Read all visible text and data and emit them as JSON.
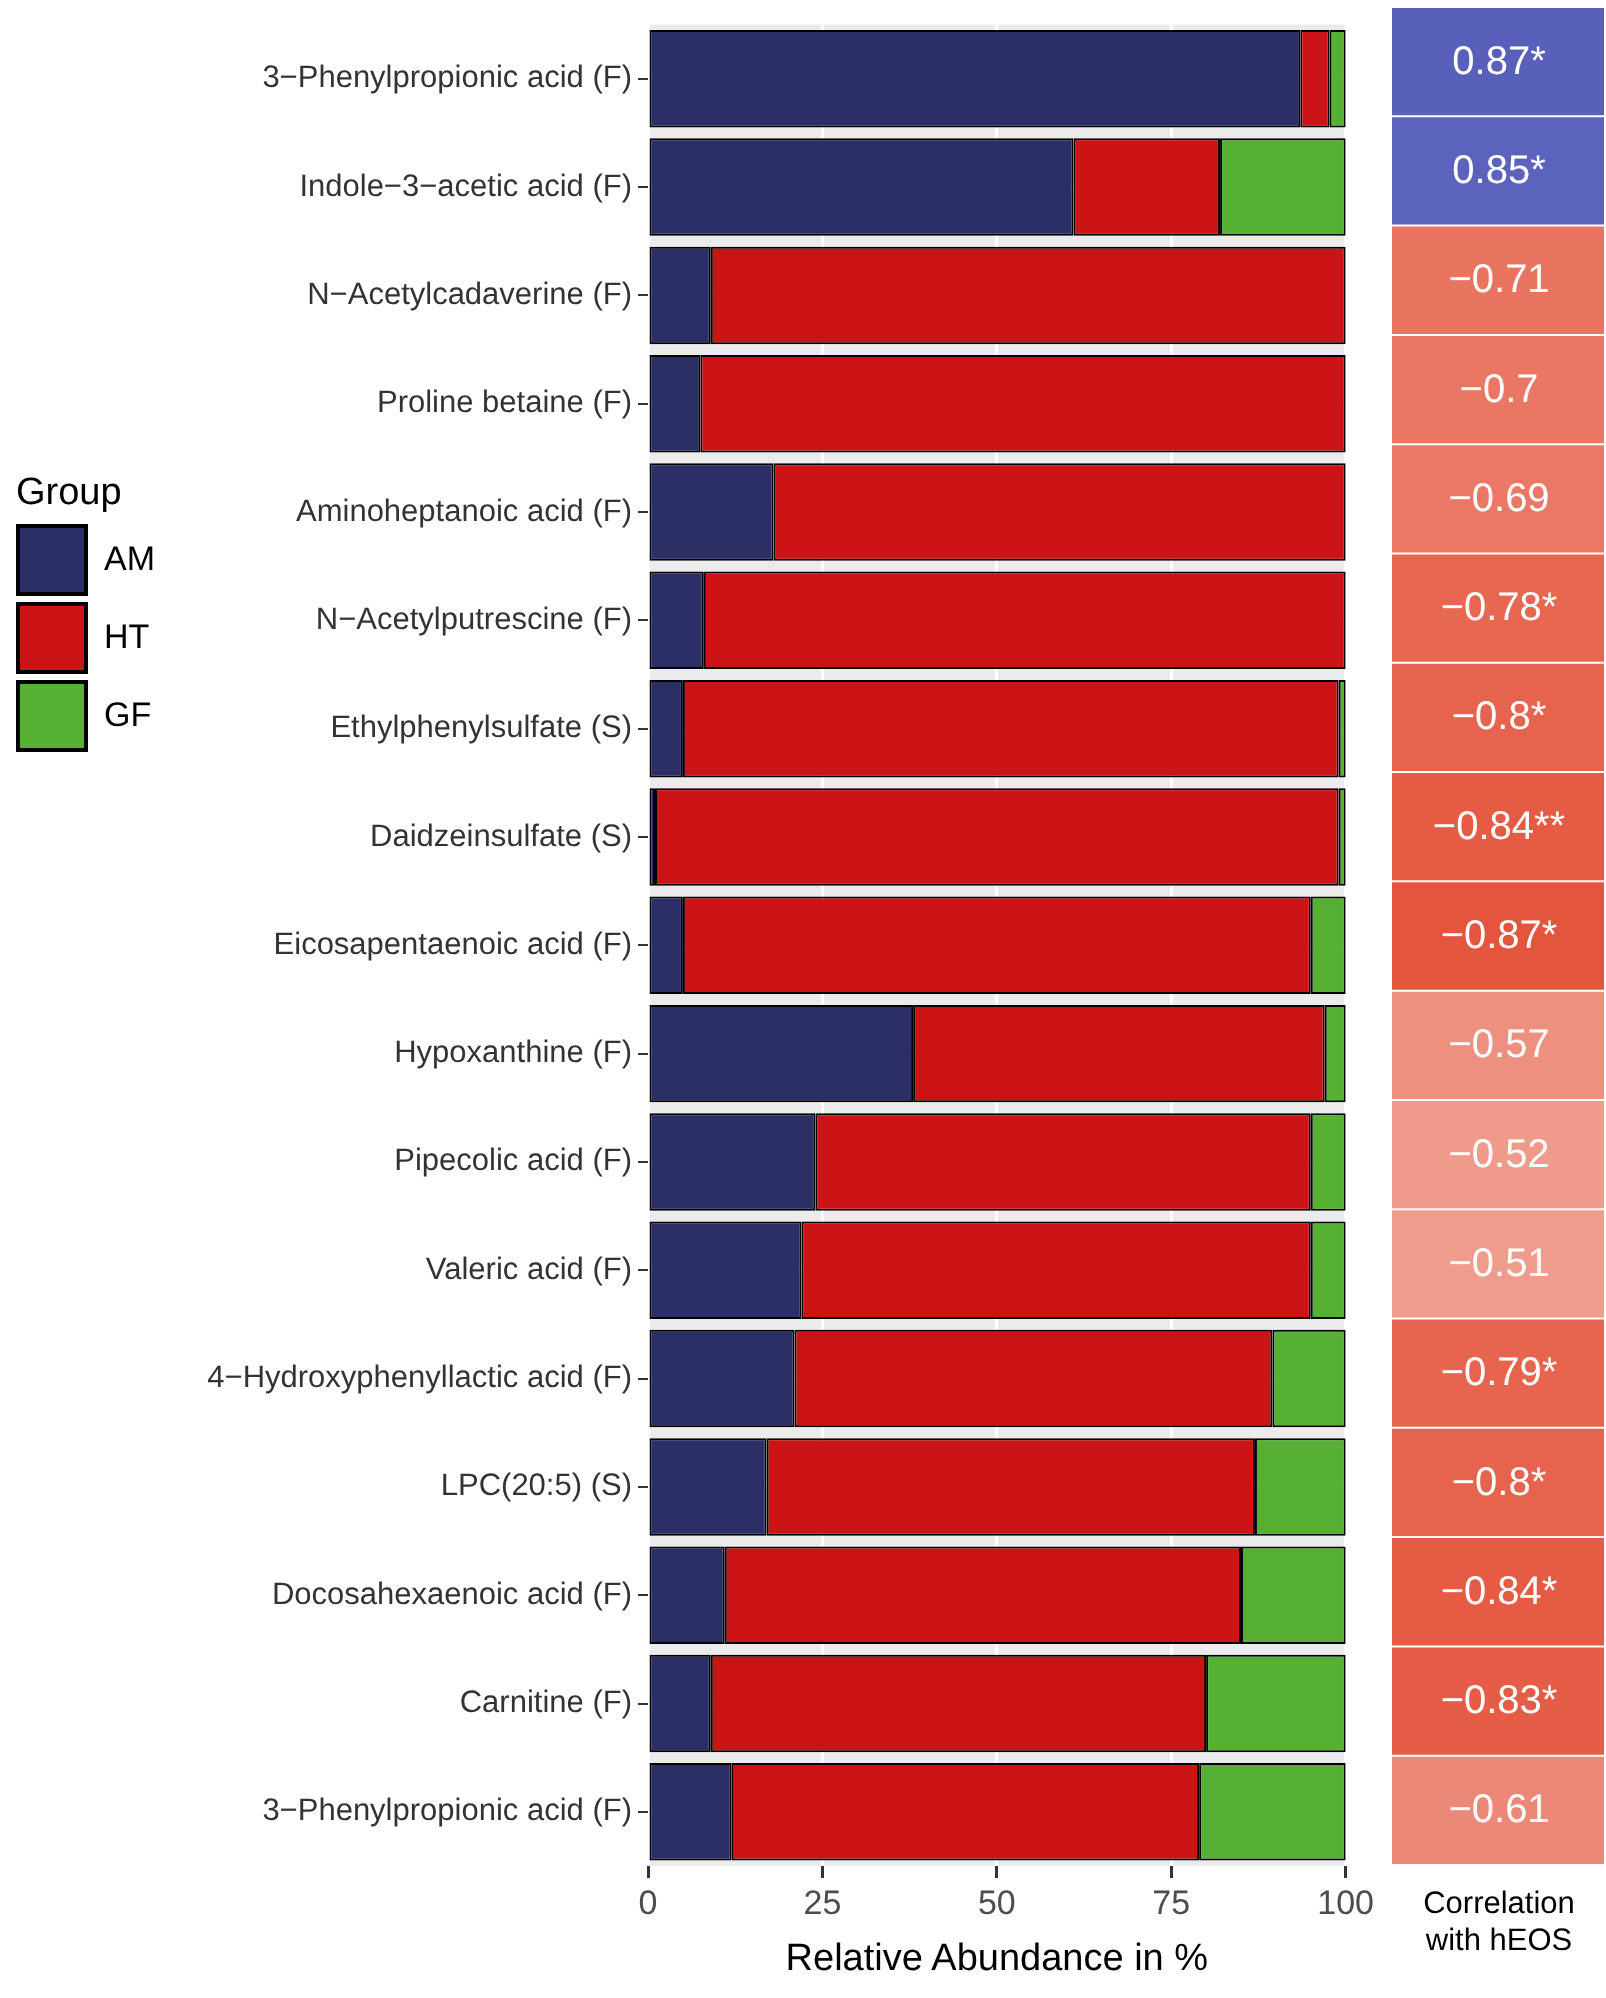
{
  "chart_data": [
    {
      "type": "bar",
      "orientation": "horizontal",
      "stacked": true,
      "xlabel": "Relative Abundance in %",
      "legend_title": "Group",
      "legend": "left",
      "grid": true,
      "categories": [
        "3−Phenylpropionic acid (F)",
        "Indole−3−acetic acid (F)",
        "N−Acetylcadaverine (F)",
        "Proline betaine (F)",
        "Aminoheptanoic acid (F)",
        "N−Acetylputrescine (F)",
        "Ethylphenylsulfate (S)",
        "Daidzeinsulfate (S)",
        "Eicosapentaenoic acid (F)",
        "Hypoxanthine (F)",
        "Pipecolic acid (F)",
        "Valeric acid (F)",
        "4−Hydroxyphenyllactic acid (F)",
        "LPC(20:5) (S)",
        "Docosahexaenoic acid (F)",
        "Carnitine (F)",
        "3−Phenylpropionic acid (F)"
      ],
      "xlim": [
        0,
        100
      ],
      "xticks": [
        0,
        25,
        50,
        75,
        100
      ],
      "series": [
        {
          "name": "AM",
          "color": "#2b2f66",
          "values": [
            93.5,
            61,
            9,
            7.5,
            18,
            8,
            5,
            1,
            5,
            38,
            24,
            22,
            21,
            17,
            11,
            9,
            12
          ]
        },
        {
          "name": "HT",
          "color": "#cc1417",
          "values": [
            4.2,
            21,
            91,
            92.5,
            82,
            92,
            94,
            98,
            90,
            59,
            71,
            73,
            68.5,
            70,
            74,
            71,
            67
          ]
        },
        {
          "name": "GF",
          "color": "#55b033",
          "values": [
            2.3,
            18,
            0,
            0,
            0,
            0,
            1,
            1,
            5,
            3,
            5,
            5,
            10.5,
            13,
            15,
            20,
            21
          ]
        }
      ]
    },
    {
      "type": "heatmap",
      "tick_labels": "x",
      "categories": [
        "Correlation with hEOS"
      ],
      "y_categories": [
        null,
        null,
        null,
        null,
        null,
        null,
        null,
        null,
        null,
        null,
        null,
        null,
        null,
        null,
        null,
        null,
        null
      ],
      "cells": [
        [
          0.87
        ],
        [
          0.85
        ],
        [
          -0.71
        ],
        [
          -0.7
        ],
        [
          -0.69
        ],
        [
          -0.78
        ],
        [
          -0.8
        ],
        [
          -0.84
        ],
        [
          -0.87
        ],
        [
          -0.57
        ],
        [
          -0.52
        ],
        [
          -0.51
        ],
        [
          -0.79
        ],
        [
          -0.8
        ],
        [
          -0.84
        ],
        [
          -0.83
        ],
        [
          -0.61
        ]
      ],
      "cell_labels": [
        [
          "0.87*"
        ],
        [
          "0.85*"
        ],
        [
          "−0.71"
        ],
        [
          "−0.7"
        ],
        [
          "−0.69"
        ],
        [
          "−0.78*"
        ],
        [
          "−0.8*"
        ],
        [
          "−0.84**"
        ],
        [
          "−0.87*"
        ],
        [
          "−0.57"
        ],
        [
          "−0.52"
        ],
        [
          "−0.51"
        ],
        [
          "−0.79*"
        ],
        [
          "−0.8*"
        ],
        [
          "−0.84*"
        ],
        [
          "−0.83*"
        ],
        [
          "−0.61"
        ]
      ]
    }
  ]
}
